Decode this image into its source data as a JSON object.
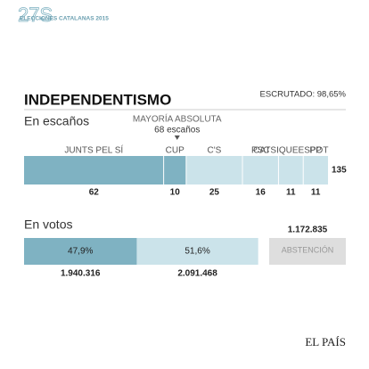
{
  "header": {
    "logo": "27S",
    "subtitle": "ELECCIONES CATALANAS 2015"
  },
  "title": "INDEPENDENTISMO",
  "status": "ESCRUTADO: 98,65%",
  "footer": "EL PAÍS",
  "chart_data": [
    {
      "type": "stacked-bar",
      "title": "En escaños",
      "categories": [
        "JUNTS PEL SÍ",
        "CUP",
        "C'S",
        "PSC",
        "CATSIQUEESPOT",
        "PP"
      ],
      "values": [
        62,
        10,
        25,
        16,
        11,
        11
      ],
      "colors": [
        "#7fb2c2",
        "#7fb2c2",
        "#cbe3ea",
        "#cbe3ea",
        "#cbe3ea",
        "#cbe3ea"
      ],
      "total": 135,
      "xlim": [
        0,
        135
      ],
      "threshold": {
        "label": "MAYORÍA ABSOLUTA",
        "sublabel": "68 escaños",
        "value": 68
      }
    },
    {
      "type": "stacked-bar",
      "title": "En votos",
      "values": [
        47.9,
        51.6
      ],
      "value_labels": [
        "47,9%",
        "51,6%"
      ],
      "counts": [
        1940316,
        2091468
      ],
      "count_labels": [
        "1.940.316",
        "2.091.468"
      ],
      "colors": [
        "#7fb2c2",
        "#cbe3ea"
      ],
      "xlim": [
        0,
        100
      ],
      "abstention": {
        "label": "ABSTENCIÓN",
        "value": 1172835,
        "value_label": "1.172.835"
      }
    }
  ]
}
